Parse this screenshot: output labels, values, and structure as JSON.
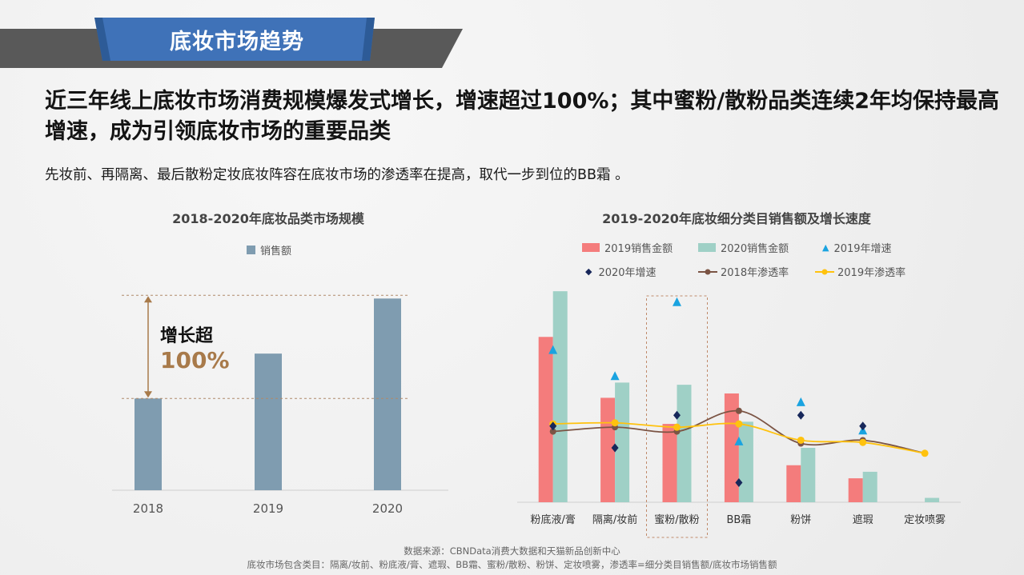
{
  "header": {
    "title": "底妆市场趋势"
  },
  "headline": "近三年线上底妆市场消费规模爆发式增长，增速超过100%；其中蜜粉/散粉品类连续2年均保持最高增速，成为引领底妆市场的重要品类",
  "subline": "先妆前、再隔离、最后散粉定妆底妆阵容在底妆市场的渗透率在提高，取代一步到位的BB霜 。",
  "colors": {
    "banner": "#3f72b8",
    "bar_left": "#7f9cb0",
    "bar2019": "#f47c7c",
    "bar2020": "#9fd0c6",
    "growth2019": "#1aa3e0",
    "growth2020": "#17275a",
    "pen2018": "#7b5444",
    "pen2019": "#ffc20e",
    "annotation": "#a87a4a"
  },
  "annotation": {
    "line1": "增长超",
    "line2": "100%"
  },
  "chart_data": [
    {
      "type": "bar",
      "title": "2018-2020年底妆品类市场规模",
      "legend": [
        "销售额"
      ],
      "categories": [
        "2018",
        "2019",
        "2020"
      ],
      "values": [
        45,
        67,
        94
      ],
      "ylim": [
        0,
        100
      ]
    },
    {
      "type": "bar+line",
      "title": "2019-2020年底妆细分类目销售额及增长速度",
      "categories": [
        "粉底液/膏",
        "隔离/妆前",
        "蜜粉/散粉",
        "BB霜",
        "粉饼",
        "遮瑕",
        "定妆喷雾"
      ],
      "ylim": [
        0,
        100
      ],
      "series": [
        {
          "name": "2019销售金额",
          "kind": "bar",
          "values": [
            76,
            48,
            36,
            50,
            17,
            11,
            0
          ]
        },
        {
          "name": "2020销售金额",
          "kind": "bar",
          "values": [
            97,
            55,
            54,
            37,
            25,
            14,
            2
          ]
        },
        {
          "name": "2019年增速",
          "kind": "marker",
          "marker": "triangle",
          "values": [
            70,
            58,
            92,
            28,
            46,
            33,
            null
          ]
        },
        {
          "name": "2020年增速",
          "kind": "marker",
          "marker": "diamond",
          "values": [
            35,
            25,
            40,
            9,
            40,
            35,
            null
          ]
        },
        {
          "name": "2018年渗透率",
          "kind": "line",
          "values": [
            32.5,
            34.5,
            32.5,
            42,
            27,
            28.5,
            22.5
          ]
        },
        {
          "name": "2019年渗透率",
          "kind": "line",
          "values": [
            36,
            36.5,
            34.5,
            36,
            28.5,
            27.5,
            22.5
          ]
        }
      ]
    }
  ],
  "footer": {
    "line1": "数据来源：CBNData消费大数据和天猫新品创新中心",
    "line2": "底妆市场包含类目：隔离/妆前、粉底液/膏、遮瑕、BB霜、蜜粉/散粉、粉饼、定妆喷雾，渗透率=细分类目销售额/底妆市场销售额"
  }
}
